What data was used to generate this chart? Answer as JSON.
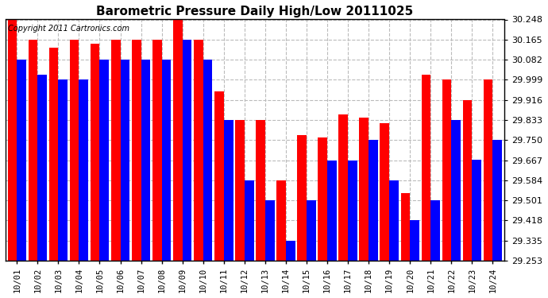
{
  "title": "Barometric Pressure Daily High/Low 20111025",
  "copyright": "Copyright 2011 Cartronics.com",
  "dates": [
    "10/01",
    "10/02",
    "10/03",
    "10/04",
    "10/05",
    "10/06",
    "10/07",
    "10/08",
    "10/09",
    "10/10",
    "10/11",
    "10/12",
    "10/13",
    "10/14",
    "10/15",
    "10/16",
    "10/17",
    "10/18",
    "10/19",
    "10/20",
    "10/21",
    "10/22",
    "10/23",
    "10/24"
  ],
  "highs": [
    30.248,
    30.165,
    30.131,
    30.165,
    30.148,
    30.165,
    30.165,
    30.165,
    30.248,
    30.165,
    29.95,
    29.833,
    29.833,
    29.583,
    29.77,
    29.76,
    29.855,
    29.843,
    29.82,
    29.53,
    30.02,
    30.0,
    29.916,
    30.0
  ],
  "lows": [
    30.082,
    30.02,
    29.999,
    29.999,
    30.082,
    30.082,
    30.082,
    30.082,
    30.165,
    30.082,
    29.833,
    29.584,
    29.501,
    29.335,
    29.501,
    29.667,
    29.667,
    29.75,
    29.584,
    29.418,
    29.5,
    29.833,
    29.67,
    29.75
  ],
  "bar_color_high": "#FF0000",
  "bar_color_low": "#0000FF",
  "background_color": "#FFFFFF",
  "plot_bg_color": "#FFFFFF",
  "grid_color": "#BBBBBB",
  "ylim_min": 29.253,
  "ylim_max": 30.248,
  "yticks": [
    29.253,
    29.335,
    29.418,
    29.501,
    29.584,
    29.667,
    29.75,
    29.833,
    29.916,
    29.999,
    30.082,
    30.165,
    30.248
  ]
}
